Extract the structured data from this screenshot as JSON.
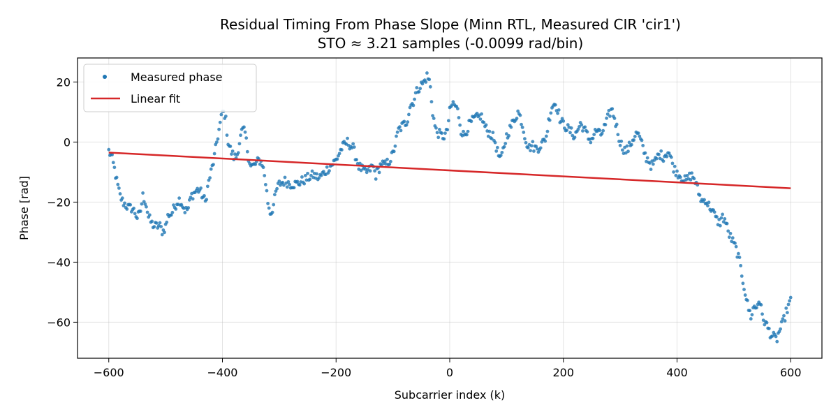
{
  "chart_data": {
    "type": "scatter",
    "title": "Residual Timing From Phase Slope (Minn RTL, Measured CIR 'cir1')",
    "subtitle": "STO ≈ 3.21 samples (-0.0099 rad/bin)",
    "xlabel": "Subcarrier index (k)",
    "ylabel": "Phase [rad]",
    "xlim": [
      -655,
      655
    ],
    "ylim": [
      -72,
      28
    ],
    "xticks": [
      -600,
      -400,
      -200,
      0,
      200,
      400,
      600
    ],
    "yticks": [
      20,
      0,
      -20,
      -40,
      -60
    ],
    "grid": true,
    "legend_position": "upper-left",
    "colors": {
      "measured": "#1f77b4",
      "fit": "#d62728"
    },
    "series": [
      {
        "name": "Measured phase",
        "kind": "points",
        "sample_step": 2,
        "x_range": [
          -600,
          600
        ],
        "profile": [
          [
            -600,
            -3
          ],
          [
            -595,
            -5
          ],
          [
            -590,
            -9
          ],
          [
            -585,
            -14
          ],
          [
            -580,
            -18
          ],
          [
            -575,
            -20
          ],
          [
            -570,
            -21
          ],
          [
            -565,
            -22
          ],
          [
            -560,
            -22
          ],
          [
            -555,
            -23
          ],
          [
            -550,
            -25
          ],
          [
            -545,
            -24
          ],
          [
            -540,
            -18
          ],
          [
            -535,
            -20
          ],
          [
            -530,
            -25
          ],
          [
            -525,
            -27
          ],
          [
            -520,
            -28
          ],
          [
            -515,
            -28
          ],
          [
            -510,
            -28
          ],
          [
            -505,
            -30
          ],
          [
            -500,
            -28
          ],
          [
            -495,
            -24
          ],
          [
            -490,
            -24
          ],
          [
            -485,
            -22
          ],
          [
            -480,
            -20
          ],
          [
            -475,
            -19
          ],
          [
            -470,
            -21
          ],
          [
            -465,
            -23
          ],
          [
            -460,
            -22
          ],
          [
            -455,
            -18
          ],
          [
            -450,
            -17
          ],
          [
            -445,
            -16
          ],
          [
            -440,
            -16
          ],
          [
            -435,
            -18
          ],
          [
            -430,
            -20
          ],
          [
            -425,
            -14
          ],
          [
            -420,
            -10
          ],
          [
            -415,
            -6
          ],
          [
            -410,
            0
          ],
          [
            -405,
            5
          ],
          [
            -400,
            10
          ],
          [
            -395,
            9
          ],
          [
            -390,
            0
          ],
          [
            -385,
            -3
          ],
          [
            -380,
            -5
          ],
          [
            -375,
            -5
          ],
          [
            -370,
            0
          ],
          [
            -365,
            4
          ],
          [
            -360,
            3
          ],
          [
            -355,
            -4
          ],
          [
            -350,
            -8
          ],
          [
            -345,
            -8
          ],
          [
            -340,
            -7
          ],
          [
            -335,
            -6
          ],
          [
            -330,
            -7
          ],
          [
            -325,
            -12
          ],
          [
            -320,
            -20
          ],
          [
            -315,
            -24
          ],
          [
            -310,
            -21
          ],
          [
            -305,
            -16
          ],
          [
            -300,
            -14
          ],
          [
            -290,
            -13
          ],
          [
            -280,
            -14
          ],
          [
            -270,
            -14
          ],
          [
            -260,
            -13
          ],
          [
            -250,
            -12
          ],
          [
            -240,
            -11
          ],
          [
            -230,
            -12
          ],
          [
            -220,
            -10
          ],
          [
            -210,
            -8
          ],
          [
            -200,
            -6
          ],
          [
            -195,
            -4
          ],
          [
            -190,
            -2
          ],
          [
            -185,
            -1
          ],
          [
            -180,
            0
          ],
          [
            -175,
            -1
          ],
          [
            -170,
            -2
          ],
          [
            -165,
            -5
          ],
          [
            -160,
            -8
          ],
          [
            -155,
            -9
          ],
          [
            -150,
            -10
          ],
          [
            -145,
            -10
          ],
          [
            -140,
            -9
          ],
          [
            -135,
            -8
          ],
          [
            -130,
            -11
          ],
          [
            -125,
            -9
          ],
          [
            -120,
            -7
          ],
          [
            -115,
            -8
          ],
          [
            -110,
            -7
          ],
          [
            -105,
            -6
          ],
          [
            -100,
            -4
          ],
          [
            -95,
            0
          ],
          [
            -90,
            4
          ],
          [
            -85,
            5
          ],
          [
            -80,
            6
          ],
          [
            -75,
            7
          ],
          [
            -70,
            12
          ],
          [
            -65,
            13
          ],
          [
            -60,
            16
          ],
          [
            -55,
            18
          ],
          [
            -50,
            19
          ],
          [
            -45,
            20
          ],
          [
            -40,
            22
          ],
          [
            -35,
            20
          ],
          [
            -30,
            10
          ],
          [
            -25,
            4
          ],
          [
            -20,
            3
          ],
          [
            -15,
            2
          ],
          [
            -10,
            2
          ],
          [
            -5,
            3
          ],
          [
            0,
            10
          ],
          [
            5,
            13
          ],
          [
            10,
            12
          ],
          [
            15,
            10
          ],
          [
            20,
            4
          ],
          [
            25,
            2
          ],
          [
            30,
            4
          ],
          [
            35,
            6
          ],
          [
            40,
            7
          ],
          [
            45,
            8
          ],
          [
            50,
            8
          ],
          [
            55,
            9
          ],
          [
            60,
            6
          ],
          [
            65,
            4
          ],
          [
            70,
            3
          ],
          [
            75,
            2
          ],
          [
            80,
            0
          ],
          [
            85,
            -4
          ],
          [
            90,
            -6
          ],
          [
            95,
            -2
          ],
          [
            100,
            2
          ],
          [
            105,
            4
          ],
          [
            110,
            6
          ],
          [
            115,
            8
          ],
          [
            120,
            10
          ],
          [
            125,
            8
          ],
          [
            130,
            4
          ],
          [
            135,
            0
          ],
          [
            140,
            -2
          ],
          [
            145,
            -1
          ],
          [
            150,
            -2
          ],
          [
            155,
            -2
          ],
          [
            160,
            -1
          ],
          [
            165,
            0
          ],
          [
            170,
            2
          ],
          [
            175,
            8
          ],
          [
            180,
            12
          ],
          [
            185,
            13
          ],
          [
            190,
            11
          ],
          [
            195,
            7
          ],
          [
            200,
            6
          ],
          [
            205,
            5
          ],
          [
            210,
            4
          ],
          [
            215,
            3
          ],
          [
            220,
            2
          ],
          [
            225,
            4
          ],
          [
            230,
            6
          ],
          [
            235,
            5
          ],
          [
            240,
            3
          ],
          [
            245,
            1
          ],
          [
            250,
            1
          ],
          [
            255,
            3
          ],
          [
            260,
            4
          ],
          [
            265,
            2
          ],
          [
            270,
            4
          ],
          [
            275,
            6
          ],
          [
            280,
            9
          ],
          [
            285,
            11
          ],
          [
            290,
            8
          ],
          [
            295,
            4
          ],
          [
            300,
            0
          ],
          [
            305,
            -2
          ],
          [
            310,
            -3
          ],
          [
            315,
            -2
          ],
          [
            320,
            0
          ],
          [
            325,
            2
          ],
          [
            330,
            3
          ],
          [
            335,
            1
          ],
          [
            340,
            -2
          ],
          [
            345,
            -5
          ],
          [
            350,
            -6
          ],
          [
            355,
            -8
          ],
          [
            360,
            -7
          ],
          [
            365,
            -5
          ],
          [
            370,
            -4
          ],
          [
            375,
            -5
          ],
          [
            380,
            -4
          ],
          [
            385,
            -3
          ],
          [
            390,
            -6
          ],
          [
            395,
            -9
          ],
          [
            400,
            -10
          ],
          [
            405,
            -11
          ],
          [
            410,
            -12
          ],
          [
            415,
            -13
          ],
          [
            420,
            -12
          ],
          [
            425,
            -11
          ],
          [
            430,
            -12
          ],
          [
            435,
            -15
          ],
          [
            440,
            -18
          ],
          [
            445,
            -20
          ],
          [
            450,
            -19
          ],
          [
            455,
            -21
          ],
          [
            460,
            -22
          ],
          [
            465,
            -24
          ],
          [
            470,
            -26
          ],
          [
            475,
            -27
          ],
          [
            480,
            -25
          ],
          [
            485,
            -26
          ],
          [
            490,
            -30
          ],
          [
            495,
            -32
          ],
          [
            500,
            -34
          ],
          [
            505,
            -36
          ],
          [
            510,
            -40
          ],
          [
            515,
            -45
          ],
          [
            520,
            -50
          ],
          [
            525,
            -55
          ],
          [
            530,
            -58
          ],
          [
            535,
            -55
          ],
          [
            540,
            -55
          ],
          [
            545,
            -52
          ],
          [
            550,
            -58
          ],
          [
            555,
            -60
          ],
          [
            560,
            -62
          ],
          [
            565,
            -64
          ],
          [
            570,
            -65
          ],
          [
            575,
            -66
          ],
          [
            580,
            -63
          ],
          [
            585,
            -61
          ],
          [
            590,
            -58
          ],
          [
            595,
            -55
          ],
          [
            600,
            -53
          ]
        ]
      },
      {
        "name": "Linear fit",
        "kind": "line",
        "x": [
          -600,
          600
        ],
        "y": [
          -3.5,
          -15.4
        ]
      }
    ]
  }
}
